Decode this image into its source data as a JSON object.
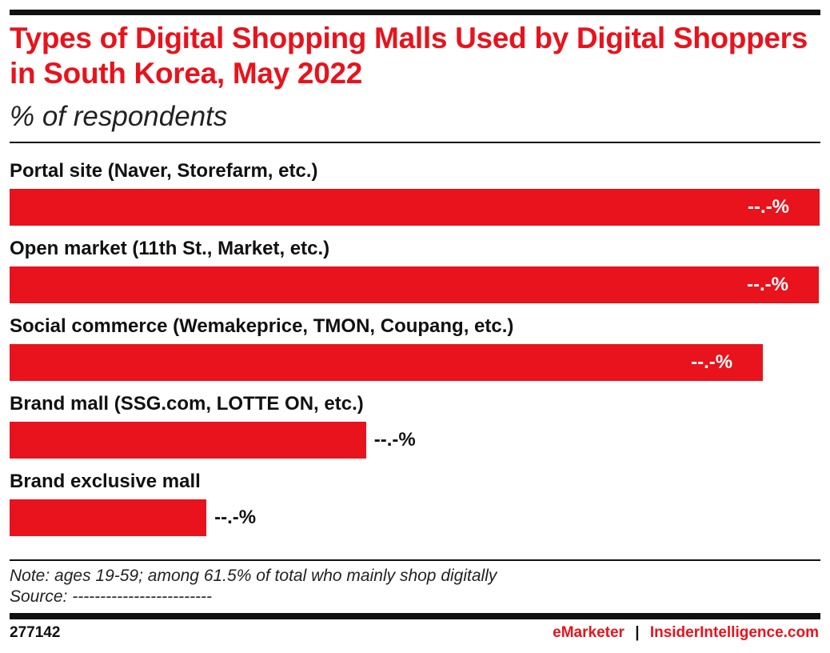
{
  "title": "Types of Digital Shopping Malls Used by Digital Shoppers in South Korea, May 2022",
  "subtitle": "% of respondents",
  "colors": {
    "bar": "#e8131c",
    "title": "#e8131c"
  },
  "chart_data": {
    "type": "bar",
    "orientation": "horizontal",
    "title": "Types of Digital Shopping Malls Used by Digital Shoppers in South Korea, May 2022",
    "subtitle": "% of respondents",
    "categories": [
      "Portal site (Naver, Storefarm, etc.)",
      "Open market (11th St., Market, etc.)",
      "Social commerce (Wemakeprice, TMON, Coupang, etc.)",
      "Brand mall (SSG.com, LOTTE ON, etc.)",
      "Brand exclusive mall"
    ],
    "values": [
      100,
      99.9,
      93,
      44,
      24.3
    ],
    "value_labels": [
      "--.-%",
      "--.-%",
      "--.-%",
      "--.-%",
      "--.-%"
    ],
    "grid": false
  },
  "note": "Note: ages 19-59; among 61.5% of total who mainly shop digitally",
  "source": "Source: -------------------------",
  "footer": {
    "id": "277142",
    "brand1": "eMarketer",
    "separator": "|",
    "brand2": "InsiderIntelligence.com"
  }
}
